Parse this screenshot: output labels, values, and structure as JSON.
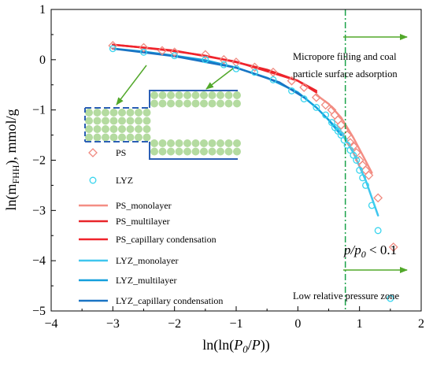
{
  "chart_data": {
    "type": "line",
    "title": "",
    "xlabel": "ln(ln(P0/P))",
    "ylabel": "ln(mFHH), mmol/g",
    "xlim": [
      -4,
      2
    ],
    "ylim": [
      -5,
      1
    ],
    "xticks": [
      "−4",
      "−3",
      "−2",
      "−1",
      "0",
      "1",
      "2"
    ],
    "yticks": [
      "−5",
      "−4",
      "−3",
      "−2",
      "−1",
      "0",
      "1"
    ],
    "grid": false,
    "legend_position": "lower-left",
    "colors": {
      "ps_marker": "#f08a80",
      "lyz_marker": "#38d4ee",
      "ps_monolayer": "#f48e84",
      "ps_multilayer": "#e8252a",
      "ps_capillary": "#f0242c",
      "lyz_monolayer": "#3fc6ee",
      "lyz_multilayer": "#149fdc",
      "lyz_capillary": "#1a74c4",
      "divider": "#1aa24a",
      "arrows": "#52a82a",
      "pore_fill": "#b4dba0",
      "pore_wall": "#2b5fb5"
    },
    "divider_x": 0.77,
    "series": [
      {
        "name": "PS",
        "kind": "scatter",
        "marker": "diamond",
        "points": [
          [
            -3.0,
            0.28
          ],
          [
            -2.5,
            0.24
          ],
          [
            -2.2,
            0.18
          ],
          [
            -2.0,
            0.15
          ],
          [
            -1.5,
            0.1
          ],
          [
            -1.2,
            0.0
          ],
          [
            -1.0,
            -0.05
          ],
          [
            -0.7,
            -0.15
          ],
          [
            -0.4,
            -0.25
          ],
          [
            -0.1,
            -0.42
          ],
          [
            0.1,
            -0.55
          ],
          [
            0.3,
            -0.75
          ],
          [
            0.45,
            -0.9
          ],
          [
            0.55,
            -1.0
          ],
          [
            0.6,
            -1.1
          ],
          [
            0.65,
            -1.2
          ],
          [
            0.7,
            -1.3
          ],
          [
            0.75,
            -1.4
          ],
          [
            0.8,
            -1.5
          ],
          [
            0.85,
            -1.65
          ],
          [
            0.9,
            -1.72
          ],
          [
            0.95,
            -1.85
          ],
          [
            1.0,
            -2.0
          ],
          [
            1.05,
            -2.1
          ],
          [
            1.1,
            -2.2
          ],
          [
            1.15,
            -2.3
          ],
          [
            1.3,
            -2.75
          ],
          [
            1.55,
            -3.73
          ]
        ]
      },
      {
        "name": "LYZ",
        "kind": "scatter",
        "marker": "circle",
        "points": [
          [
            -3.0,
            0.22
          ],
          [
            -2.5,
            0.15
          ],
          [
            -2.0,
            0.08
          ],
          [
            -1.5,
            0.0
          ],
          [
            -1.2,
            -0.1
          ],
          [
            -1.0,
            -0.18
          ],
          [
            -0.7,
            -0.25
          ],
          [
            -0.4,
            -0.4
          ],
          [
            -0.1,
            -0.62
          ],
          [
            0.1,
            -0.78
          ],
          [
            0.3,
            -0.95
          ],
          [
            0.45,
            -1.1
          ],
          [
            0.55,
            -1.25
          ],
          [
            0.6,
            -1.35
          ],
          [
            0.65,
            -1.42
          ],
          [
            0.7,
            -1.5
          ],
          [
            0.75,
            -1.6
          ],
          [
            0.8,
            -1.7
          ],
          [
            0.85,
            -1.8
          ],
          [
            0.9,
            -1.9
          ],
          [
            0.95,
            -2.0
          ],
          [
            1.0,
            -2.2
          ],
          [
            1.05,
            -2.35
          ],
          [
            1.1,
            -2.5
          ],
          [
            1.2,
            -2.9
          ],
          [
            1.3,
            -3.4
          ],
          [
            1.5,
            -4.75
          ]
        ]
      },
      {
        "name": "PS_monolayer",
        "kind": "line",
        "points": [
          [
            0.3,
            -0.7
          ],
          [
            0.5,
            -0.88
          ],
          [
            0.7,
            -1.15
          ],
          [
            0.9,
            -1.55
          ],
          [
            1.05,
            -1.9
          ],
          [
            1.2,
            -2.25
          ]
        ]
      },
      {
        "name": "PS_multilayer",
        "kind": "line",
        "points": [
          [
            -3.0,
            0.3
          ],
          [
            -2.5,
            0.24
          ],
          [
            -2.0,
            0.17
          ],
          [
            -1.5,
            0.08
          ],
          [
            -1.0,
            -0.05
          ],
          [
            -0.5,
            -0.2
          ],
          [
            0.0,
            -0.42
          ],
          [
            0.3,
            -0.62
          ]
        ]
      },
      {
        "name": "PS_capillary condensation",
        "kind": "line",
        "points": [
          [
            -3.0,
            0.3
          ],
          [
            -2.0,
            0.18
          ],
          [
            -1.0,
            -0.04
          ],
          [
            0.0,
            -0.42
          ],
          [
            0.3,
            -0.65
          ]
        ]
      },
      {
        "name": "LYZ_monolayer",
        "kind": "line",
        "points": [
          [
            0.5,
            -1.2
          ],
          [
            0.7,
            -1.45
          ],
          [
            0.9,
            -1.85
          ],
          [
            1.1,
            -2.4
          ],
          [
            1.3,
            -3.1
          ]
        ]
      },
      {
        "name": "LYZ_multilayer",
        "kind": "line",
        "points": [
          [
            -3.0,
            0.22
          ],
          [
            -2.5,
            0.16
          ],
          [
            -2.0,
            0.08
          ],
          [
            -1.5,
            -0.01
          ],
          [
            -1.0,
            -0.16
          ],
          [
            -0.5,
            -0.36
          ],
          [
            0.0,
            -0.65
          ],
          [
            0.3,
            -0.95
          ],
          [
            0.5,
            -1.2
          ],
          [
            0.7,
            -1.5
          ]
        ]
      },
      {
        "name": "LYZ_capillary condensation",
        "kind": "line",
        "points": [
          [
            -3.0,
            0.22
          ],
          [
            -2.0,
            0.07
          ],
          [
            -1.0,
            -0.16
          ],
          [
            -0.3,
            -0.45
          ],
          [
            0.1,
            -0.75
          ]
        ]
      }
    ],
    "legend": [
      {
        "label": "PS",
        "type": "marker",
        "key": "ps_marker",
        "shape": "diamond"
      },
      {
        "label": "LYZ",
        "type": "marker",
        "key": "lyz_marker",
        "shape": "circle"
      },
      {
        "label": "PS_monolayer",
        "type": "line",
        "key": "ps_monolayer"
      },
      {
        "label": "PS_multilayer",
        "type": "line",
        "key": "ps_multilayer"
      },
      {
        "label": "PS_capillary condensation",
        "type": "line",
        "key": "ps_capillary"
      },
      {
        "label": "LYZ_monolayer",
        "type": "line",
        "key": "lyz_monolayer"
      },
      {
        "label": "LYZ_multilayer",
        "type": "line",
        "key": "lyz_multilayer"
      },
      {
        "label": "LYZ_capillary condensation",
        "type": "line",
        "key": "lyz_capillary"
      }
    ],
    "annotations": {
      "micropore_line1": "Micropore filling and coal",
      "micropore_line2": "particle surface adsorption",
      "low_pressure": "Low relative pressure zone",
      "ratio_lhs": "p/p",
      "ratio_sub": "0",
      "ratio_rhs": " < 0.1"
    }
  }
}
